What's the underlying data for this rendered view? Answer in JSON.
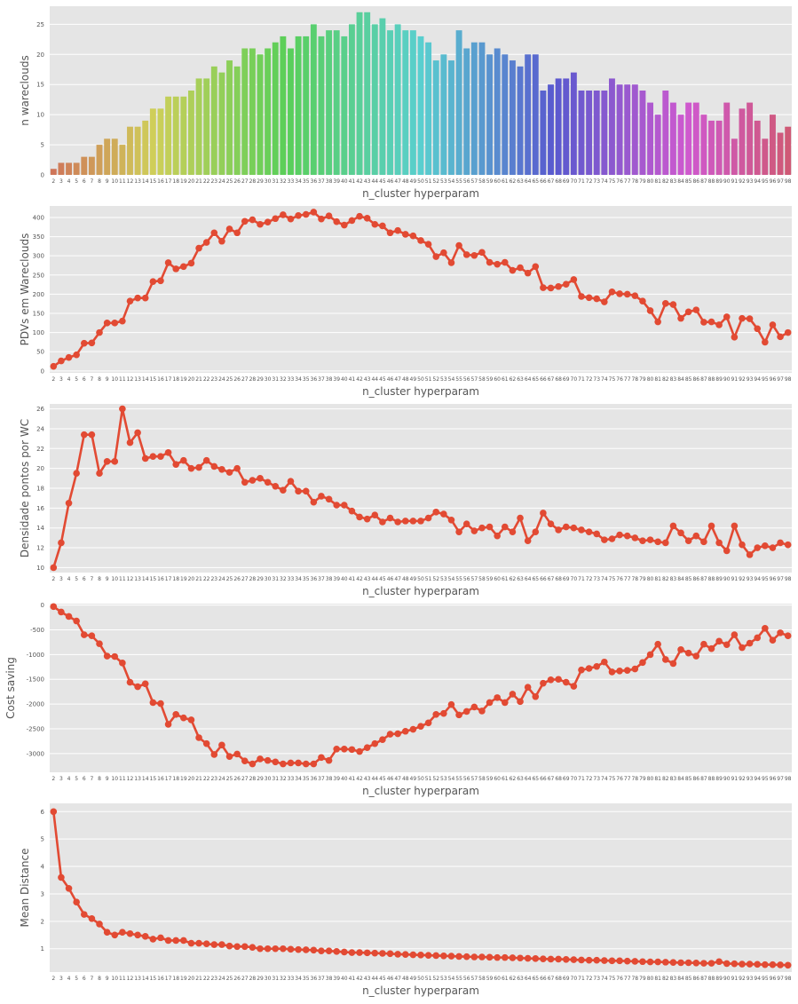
{
  "chart_data": [
    {
      "type": "bar",
      "xlabel": "n_cluster hyperparam",
      "ylabel": "n wareclouds",
      "ylim": [
        0,
        28
      ],
      "yticks": [
        0,
        5,
        10,
        15,
        20,
        25
      ],
      "grid": true,
      "categories": [
        "2",
        "3",
        "4",
        "5",
        "6",
        "7",
        "8",
        "9",
        "10",
        "11",
        "12",
        "13",
        "14",
        "15",
        "16",
        "17",
        "18",
        "19",
        "20",
        "21",
        "22",
        "23",
        "24",
        "25",
        "26",
        "27",
        "28",
        "29",
        "30",
        "31",
        "32",
        "33",
        "34",
        "35",
        "36",
        "37",
        "38",
        "39",
        "40",
        "41",
        "42",
        "43",
        "44",
        "45",
        "46",
        "47",
        "48",
        "49",
        "50",
        "51",
        "52",
        "53",
        "54",
        "55",
        "56",
        "57",
        "58",
        "59",
        "60",
        "61",
        "62",
        "63",
        "64",
        "65",
        "66",
        "67",
        "68",
        "69",
        "70",
        "71",
        "72",
        "73",
        "74",
        "75",
        "76",
        "77",
        "78",
        "79",
        "80",
        "81",
        "82",
        "83",
        "84",
        "85",
        "86",
        "87",
        "88",
        "89",
        "90",
        "91",
        "92",
        "93",
        "94",
        "95",
        "96",
        "97",
        "98"
      ],
      "values": [
        1,
        2,
        2,
        2,
        3,
        3,
        5,
        6,
        6,
        5,
        8,
        8,
        9,
        11,
        11,
        13,
        13,
        13,
        14,
        16,
        16,
        18,
        17,
        19,
        18,
        21,
        21,
        20,
        21,
        22,
        23,
        21,
        23,
        23,
        25,
        23,
        24,
        24,
        23,
        25,
        27,
        27,
        25,
        26,
        24,
        25,
        24,
        24,
        23,
        22,
        19,
        20,
        19,
        24,
        21,
        22,
        22,
        20,
        21,
        20,
        19,
        18,
        20,
        20,
        14,
        15,
        16,
        16,
        17,
        14,
        14,
        14,
        14,
        16,
        15,
        15,
        15,
        14,
        12,
        10,
        14,
        12,
        10,
        12,
        12,
        10,
        9,
        9,
        12,
        6,
        11,
        12,
        9,
        6,
        10,
        7,
        8
      ]
    },
    {
      "type": "line",
      "xlabel": "n_cluster hyperparam",
      "ylabel": "PDVs em Wareclouds",
      "ylim": [
        -5,
        430
      ],
      "yticks": [
        0,
        50,
        100,
        150,
        200,
        250,
        300,
        350,
        400
      ],
      "grid": true,
      "color": "#e24a33",
      "values": [
        12,
        26,
        35,
        42,
        72,
        73,
        100,
        125,
        125,
        130,
        182,
        190,
        190,
        233,
        235,
        282,
        266,
        272,
        281,
        320,
        335,
        360,
        338,
        370,
        360,
        390,
        394,
        382,
        388,
        397,
        407,
        396,
        405,
        408,
        414,
        396,
        404,
        389,
        380,
        392,
        403,
        398,
        382,
        378,
        360,
        366,
        356,
        352,
        340,
        330,
        298,
        308,
        282,
        327,
        303,
        301,
        309,
        283,
        278,
        283,
        262,
        269,
        255,
        272,
        217,
        216,
        220,
        226,
        238,
        194,
        191,
        188,
        180,
        206,
        201,
        200,
        196,
        182,
        157,
        128,
        176,
        173,
        137,
        154,
        159,
        127,
        128,
        120,
        141,
        88,
        137,
        136,
        110,
        75,
        120,
        89,
        100
      ]
    },
    {
      "type": "line",
      "xlabel": "n_cluster hyperparam",
      "ylabel": "Densidade pontos por WC",
      "ylim": [
        9.5,
        26.5
      ],
      "yticks": [
        10,
        12,
        14,
        16,
        18,
        20,
        22,
        24,
        26
      ],
      "grid": true,
      "color": "#e24a33",
      "values": [
        10.0,
        12.5,
        16.5,
        19.5,
        23.4,
        23.4,
        19.5,
        20.7,
        20.7,
        26.0,
        22.6,
        23.6,
        21.0,
        21.2,
        21.2,
        21.6,
        20.4,
        20.8,
        20.0,
        20.1,
        20.8,
        20.2,
        19.9,
        19.6,
        20.0,
        18.6,
        18.8,
        19.0,
        18.6,
        18.2,
        17.8,
        18.7,
        17.7,
        17.7,
        16.6,
        17.2,
        16.9,
        16.3,
        16.3,
        15.7,
        15.1,
        14.9,
        15.3,
        14.6,
        15.0,
        14.6,
        14.7,
        14.7,
        14.7,
        15.0,
        15.6,
        15.4,
        14.8,
        13.6,
        14.4,
        13.7,
        14.0,
        14.1,
        13.2,
        14.1,
        13.6,
        15.0,
        12.7,
        13.6,
        15.5,
        14.4,
        13.8,
        14.1,
        14.0,
        13.8,
        13.6,
        13.4,
        12.8,
        12.9,
        13.3,
        13.2,
        13.0,
        12.7,
        12.8,
        12.6,
        12.5,
        14.2,
        13.5,
        12.7,
        13.2,
        12.6,
        14.2,
        12.5,
        11.7,
        14.2,
        12.3,
        11.3,
        12.0,
        12.2,
        12.0,
        12.5,
        12.3
      ]
    },
    {
      "type": "line",
      "xlabel": "n_cluster hyperparam",
      "ylabel": "Cost saving",
      "ylim": [
        -3380,
        30
      ],
      "yticks": [
        0,
        -500,
        -1000,
        -1500,
        -2000,
        -2500,
        -3000
      ],
      "grid": true,
      "color": "#e24a33",
      "values": [
        -30,
        -140,
        -230,
        -320,
        -600,
        -620,
        -780,
        -1030,
        -1040,
        -1170,
        -1560,
        -1650,
        -1590,
        -1970,
        -1990,
        -2410,
        -2210,
        -2280,
        -2320,
        -2680,
        -2800,
        -3020,
        -2830,
        -3060,
        -3010,
        -3150,
        -3210,
        -3110,
        -3140,
        -3170,
        -3210,
        -3190,
        -3190,
        -3210,
        -3210,
        -3080,
        -3140,
        -2910,
        -2910,
        -2920,
        -2960,
        -2880,
        -2800,
        -2720,
        -2610,
        -2600,
        -2550,
        -2510,
        -2450,
        -2380,
        -2210,
        -2190,
        -2010,
        -2220,
        -2150,
        -2060,
        -2140,
        -1970,
        -1870,
        -1970,
        -1800,
        -1950,
        -1660,
        -1850,
        -1580,
        -1510,
        -1500,
        -1560,
        -1640,
        -1310,
        -1280,
        -1240,
        -1150,
        -1350,
        -1330,
        -1320,
        -1290,
        -1160,
        -1000,
        -790,
        -1100,
        -1180,
        -900,
        -970,
        -1030,
        -790,
        -880,
        -730,
        -800,
        -600,
        -860,
        -770,
        -660,
        -470,
        -710,
        -560,
        -620
      ]
    },
    {
      "type": "line",
      "xlabel": "n_cluster hyperparam",
      "ylabel": "Mean Distance",
      "ylim": [
        0.15,
        6.3
      ],
      "yticks": [
        1,
        2,
        3,
        4,
        5,
        6
      ],
      "grid": true,
      "color": "#e24a33",
      "values": [
        6.0,
        3.6,
        3.2,
        2.7,
        2.25,
        2.1,
        1.9,
        1.6,
        1.5,
        1.6,
        1.55,
        1.5,
        1.45,
        1.35,
        1.4,
        1.3,
        1.3,
        1.3,
        1.2,
        1.2,
        1.18,
        1.15,
        1.15,
        1.1,
        1.08,
        1.08,
        1.05,
        1.0,
        1.0,
        1.0,
        1.0,
        0.98,
        0.97,
        0.96,
        0.95,
        0.92,
        0.92,
        0.9,
        0.88,
        0.86,
        0.86,
        0.85,
        0.84,
        0.83,
        0.82,
        0.8,
        0.79,
        0.78,
        0.77,
        0.76,
        0.75,
        0.74,
        0.73,
        0.72,
        0.71,
        0.7,
        0.7,
        0.69,
        0.68,
        0.68,
        0.67,
        0.66,
        0.65,
        0.64,
        0.63,
        0.62,
        0.62,
        0.61,
        0.6,
        0.59,
        0.58,
        0.58,
        0.57,
        0.56,
        0.56,
        0.55,
        0.54,
        0.53,
        0.52,
        0.52,
        0.51,
        0.5,
        0.49,
        0.49,
        0.48,
        0.47,
        0.47,
        0.53,
        0.46,
        0.45,
        0.44,
        0.44,
        0.43,
        0.42,
        0.42,
        0.41,
        0.4
      ]
    }
  ]
}
